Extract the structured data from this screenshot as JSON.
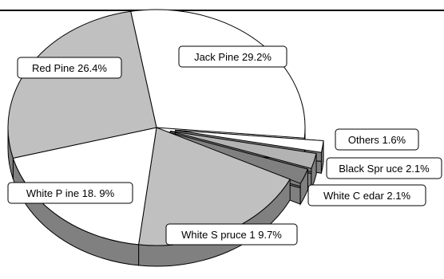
{
  "chart_data": {
    "type": "pie",
    "style": "3d-exploded",
    "title": "",
    "slices": [
      {
        "label": "Jack Pine 29.2%",
        "name": "Jack Pine",
        "value": 29.2,
        "color": "#ffffff"
      },
      {
        "label": "Others 1.6%",
        "name": "Others",
        "value": 1.6,
        "color": "#ffffff"
      },
      {
        "label": "Black Spr uce 2.1%",
        "name": "Black Spruce",
        "value": 2.1,
        "color": "#b3b3b3"
      },
      {
        "label": "White C edar 2.1%",
        "name": "White Cedar",
        "value": 2.1,
        "color": "#808080"
      },
      {
        "label": "White S pruce 1 9.7%",
        "name": "White Spruce",
        "value": 19.7,
        "color": "#c0c0c0"
      },
      {
        "label": "White P ine 18. 9%",
        "name": "White Pine",
        "value": 18.9,
        "color": "#ffffff"
      },
      {
        "label": "Red Pine 26.4%",
        "name": "Red Pine",
        "value": 26.4,
        "color": "#c0c0c0"
      }
    ],
    "colors": {
      "outline": "#000000",
      "side_shade": "#808080",
      "background": "#ffffff"
    }
  }
}
